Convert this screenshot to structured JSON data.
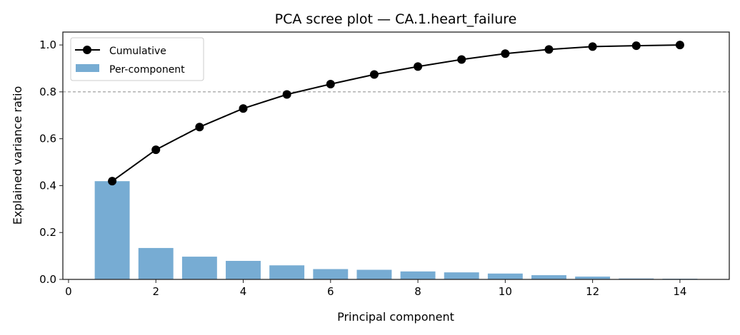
{
  "chart_data": {
    "type": "bar",
    "title": "PCA scree plot — CA.1.heart_failure",
    "xlabel": "Principal component",
    "ylabel": "Explained variance ratio",
    "xlim": [
      -0.13,
      15.13
    ],
    "ylim": [
      0,
      1.055
    ],
    "xticks": [
      0,
      2,
      4,
      6,
      8,
      10,
      12,
      14
    ],
    "yticks": [
      0.0,
      0.2,
      0.4,
      0.6,
      0.8,
      1.0
    ],
    "ytick_labels": [
      "0.0",
      "0.2",
      "0.4",
      "0.6",
      "0.8",
      "1.0"
    ],
    "x": [
      1,
      2,
      3,
      4,
      5,
      6,
      7,
      8,
      9,
      10,
      11,
      12,
      13,
      14
    ],
    "series": [
      {
        "name": "Per-component",
        "kind": "bar",
        "color": "#77acd3",
        "values": [
          0.419,
          0.134,
          0.097,
          0.079,
          0.06,
          0.044,
          0.041,
          0.034,
          0.03,
          0.025,
          0.018,
          0.012,
          0.004,
          0.003
        ]
      },
      {
        "name": "Cumulative",
        "kind": "line",
        "color": "#000000",
        "values": [
          0.419,
          0.553,
          0.65,
          0.729,
          0.789,
          0.833,
          0.874,
          0.908,
          0.938,
          0.963,
          0.981,
          0.993,
          0.997,
          1.0
        ]
      }
    ],
    "threshold": {
      "value": 0.8,
      "color": "#888888",
      "style": "dashed"
    },
    "legend": {
      "position": "top-left",
      "entries": [
        "Cumulative",
        "Per-component"
      ]
    },
    "grid": false
  }
}
